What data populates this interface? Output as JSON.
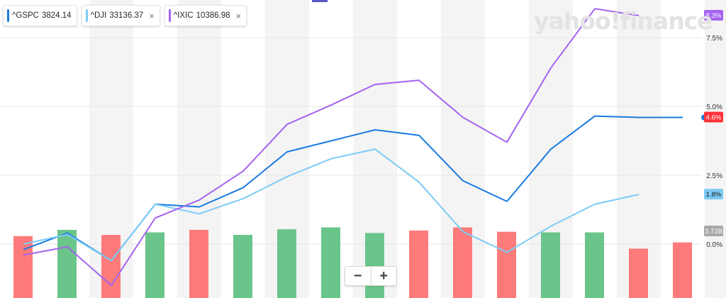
{
  "brand": {
    "watermark": "yahoo!finance"
  },
  "legend": [
    {
      "symbol": "^GSPC",
      "value": "3824.14",
      "color": "#1a7ae0",
      "closable": false
    },
    {
      "symbol": "^DJI",
      "value": "33136.37",
      "color": "#7dcbf5",
      "closable": true
    },
    {
      "symbol": "^IXIC",
      "value": "10386.98",
      "color": "#a464f0",
      "closable": true
    }
  ],
  "close_icon": "×",
  "zoom": {
    "minus": "−",
    "plus": "+"
  },
  "top_marker_color": "#5a57c4",
  "chart_data": {
    "type": "line",
    "x": [
      0,
      1,
      2,
      3,
      4,
      5,
      6,
      7,
      8,
      9,
      10,
      11,
      12,
      13,
      14,
      15
    ],
    "y_axis": {
      "ticks": [
        "7.5%",
        "5.0%",
        "2.5%",
        "0.0%"
      ],
      "tick_values": [
        7.5,
        5.0,
        2.5,
        0.0
      ],
      "ylim": [
        -1.8,
        8.8
      ],
      "position": "right"
    },
    "series": [
      {
        "name": "^GSPC",
        "color": "#1a7ae0",
        "values": [
          -0.2,
          0.4,
          -0.6,
          1.45,
          1.35,
          2.05,
          3.35,
          3.75,
          4.15,
          3.95,
          2.3,
          1.55,
          3.45,
          4.65,
          4.6,
          4.6
        ],
        "end_label": "4.6%",
        "end_label_bg": "#ff333a",
        "end_dot": true
      },
      {
        "name": "^DJI",
        "color": "#7dcbf5",
        "values": [
          0,
          0.35,
          -0.6,
          1.45,
          1.1,
          1.65,
          2.45,
          3.1,
          3.45,
          2.25,
          0.45,
          -0.3,
          0.65,
          1.45,
          1.8,
          null
        ],
        "end_label": "1.8%",
        "end_label_bg": "#7dcbf5"
      },
      {
        "name": "^IXIC",
        "color": "#a464f0",
        "values": [
          -0.4,
          -0.1,
          -1.5,
          0.95,
          1.6,
          2.65,
          4.35,
          5.05,
          5.8,
          5.95,
          4.6,
          3.7,
          6.4,
          8.55,
          8.3,
          null
        ],
        "end_label": "8.3%",
        "end_label_bg": "#a464f0"
      }
    ],
    "volume": {
      "label": "3.72B",
      "values": [
        0.9,
        1.0,
        0.92,
        0.96,
        1.0,
        0.92,
        1.01,
        1.04,
        0.95,
        0.99,
        1.04,
        0.97,
        0.96,
        0.96,
        0.7,
        0.8
      ],
      "colors": [
        "#ff7b7b",
        "#6ac58a",
        "#ff7b7b",
        "#6ac58a",
        "#ff7b7b",
        "#6ac58a",
        "#6ac58a",
        "#6ac58a",
        "#6ac58a",
        "#ff7b7b",
        "#ff7b7b",
        "#ff7b7b",
        "#6ac58a",
        "#6ac58a",
        "#ff7b7b",
        "#ff7b7b"
      ]
    },
    "grid": true
  }
}
